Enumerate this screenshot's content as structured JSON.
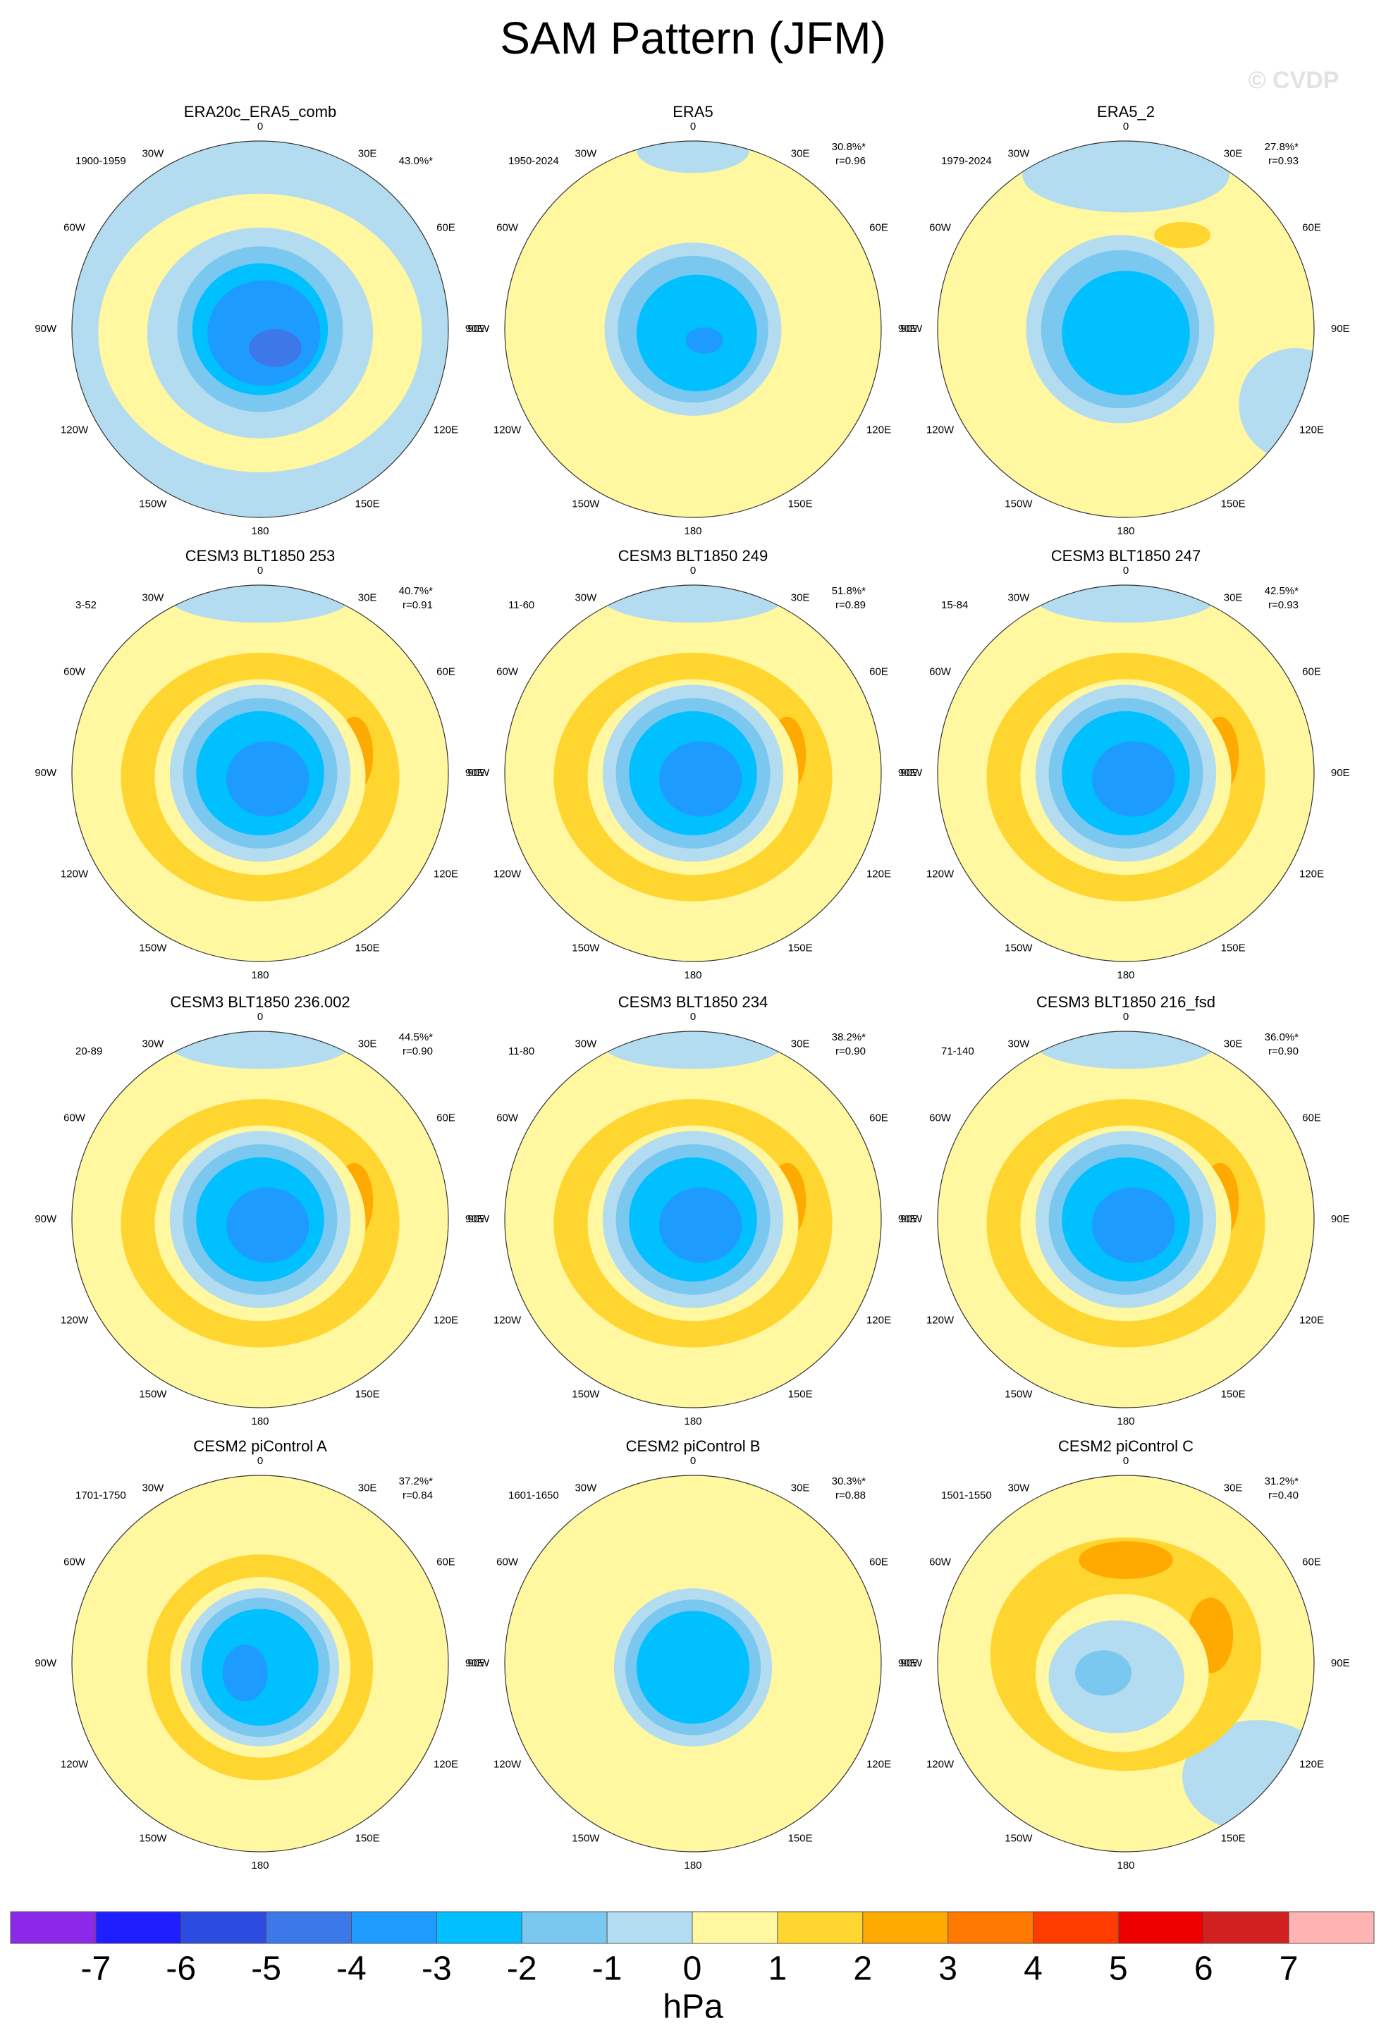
{
  "title": "SAM Pattern (JFM)",
  "watermark": "© CVDP",
  "longitude_labels": [
    "0",
    "30E",
    "60E",
    "90E",
    "120E",
    "150E",
    "180",
    "150W",
    "120W",
    "90W",
    "60W",
    "30W"
  ],
  "panels": [
    {
      "title": "ERA20c_ERA5_comb",
      "period": "1900-1959",
      "pct": "43.0%*"
    },
    {
      "title": "ERA5",
      "period": "1950-2024",
      "pct": "30.8%*",
      "r": "r=0.96"
    },
    {
      "title": "ERA5_2",
      "period": "1979-2024",
      "pct": "27.8%*",
      "r": "r=0.93"
    },
    {
      "title": "CESM3 BLT1850 253",
      "period": "3-52",
      "pct": "40.7%*",
      "r": "r=0.91"
    },
    {
      "title": "CESM3 BLT1850 249",
      "period": "11-60",
      "pct": "51.8%*",
      "r": "r=0.89"
    },
    {
      "title": "CESM3 BLT1850 247",
      "period": "15-84",
      "pct": "42.5%*",
      "r": "r=0.93"
    },
    {
      "title": "CESM3 BLT1850 236.002",
      "period": "20-89",
      "pct": "44.5%*",
      "r": "r=0.90"
    },
    {
      "title": "CESM3 BLT1850 234",
      "period": "11-80",
      "pct": "38.2%*",
      "r": "r=0.90"
    },
    {
      "title": "CESM3 BLT1850 216_fsd",
      "period": "71-140",
      "pct": "36.0%*",
      "r": "r=0.90"
    },
    {
      "title": "CESM2 piControl A",
      "period": "1701-1750",
      "pct": "37.2%*",
      "r": "r=0.84"
    },
    {
      "title": "CESM2 piControl B",
      "period": "1601-1650",
      "pct": "30.3%*",
      "r": "r=0.88"
    },
    {
      "title": "CESM2 piControl C",
      "period": "1501-1550",
      "pct": "31.2%*",
      "r": "r=0.40"
    }
  ],
  "colorbar": {
    "colors": [
      "#8c28e8",
      "#1e1eff",
      "#2c4ce0",
      "#3c78e8",
      "#1e9bff",
      "#00c0ff",
      "#7ac8f0",
      "#b4dcf0",
      "#fff8a0",
      "#ffd530",
      "#ffaa00",
      "#ff7800",
      "#ff3c00",
      "#ee0000",
      "#d02020",
      "#ffb4b4"
    ],
    "ticks": [
      -7,
      -6,
      -5,
      -4,
      -3,
      -2,
      -1,
      0,
      1,
      2,
      3,
      4,
      5,
      6,
      7
    ],
    "unit": "hPa"
  }
}
